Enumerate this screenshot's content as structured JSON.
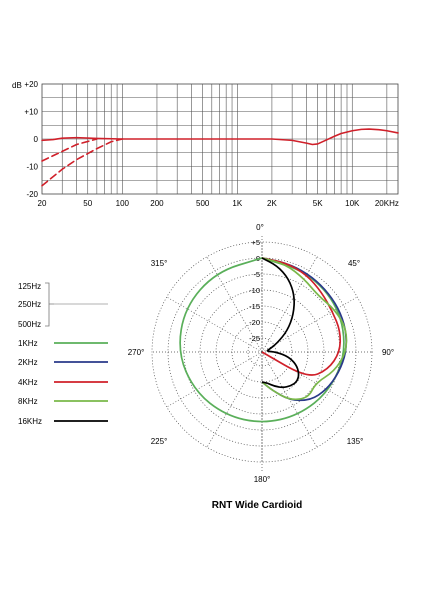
{
  "chart_data": [
    {
      "type": "line",
      "title": "",
      "xlabel": "",
      "ylabel": "dB",
      "x_scale": "log",
      "xlim": [
        20,
        25000
      ],
      "ylim": [
        -20,
        20
      ],
      "grid": true,
      "y_ticks": [
        {
          "value": 20,
          "label": "+20"
        },
        {
          "value": 10,
          "label": "+10"
        },
        {
          "value": 0,
          "label": "0"
        },
        {
          "value": -10,
          "label": "-10"
        },
        {
          "value": -20,
          "label": "-20"
        }
      ],
      "x_ticks": [
        {
          "value": 20,
          "label": "20"
        },
        {
          "value": 50,
          "label": "50"
        },
        {
          "value": 100,
          "label": "100"
        },
        {
          "value": 200,
          "label": "200"
        },
        {
          "value": 500,
          "label": "500"
        },
        {
          "value": 1000,
          "label": "1K"
        },
        {
          "value": 2000,
          "label": "2K"
        },
        {
          "value": 5000,
          "label": "5K"
        },
        {
          "value": 10000,
          "label": "10K"
        },
        {
          "value": 20000,
          "label": "20KHz"
        }
      ],
      "series": [
        {
          "style": "solid",
          "color": "#d0202a",
          "x": [
            20,
            25,
            30,
            40,
            60,
            100,
            200,
            500,
            1000,
            2000,
            3000,
            4000,
            4500,
            5000,
            6000,
            7000,
            8000,
            10000,
            12000,
            14000,
            17000,
            20000,
            25000
          ],
          "y": [
            -0.5,
            -0.2,
            0.3,
            0.5,
            0.2,
            0,
            0,
            0,
            0,
            0,
            -0.5,
            -1.5,
            -2,
            -1.8,
            -0.3,
            1,
            2,
            3,
            3.5,
            3.6,
            3.4,
            3,
            2.2
          ]
        },
        {
          "style": "dashed",
          "color": "#d0202a",
          "x": [
            20,
            30,
            40,
            60
          ],
          "y": [
            -8,
            -4.5,
            -2,
            0
          ]
        },
        {
          "style": "dashed",
          "color": "#d0202a",
          "x": [
            20,
            30,
            40,
            60,
            80,
            100
          ],
          "y": [
            -17,
            -11,
            -7.5,
            -3.5,
            -1,
            0
          ]
        }
      ]
    },
    {
      "type": "polar",
      "title": "RNT Wide Cardioid",
      "r_ticks": [
        "+5",
        "0",
        "-5",
        "-10",
        "-15",
        "-20",
        "-25"
      ],
      "angle_labels": [
        {
          "angle": 0,
          "label": "0°"
        },
        {
          "angle": 45,
          "label": "45°"
        },
        {
          "angle": 90,
          "label": "90°"
        },
        {
          "angle": 135,
          "label": "135°"
        },
        {
          "angle": 180,
          "label": "180°"
        },
        {
          "angle": 225,
          "label": "225°"
        },
        {
          "angle": 270,
          "label": "270°"
        },
        {
          "angle": 315,
          "label": "315°"
        }
      ],
      "legend": [
        {
          "name": "125Hz",
          "color": "#cccccc",
          "group": "low"
        },
        {
          "name": "250Hz",
          "color": "#cccccc",
          "group": "low"
        },
        {
          "name": "500Hz",
          "color": "#cccccc",
          "group": "low"
        },
        {
          "name": "1KHz",
          "color": "#5aaf5a"
        },
        {
          "name": "2KHz",
          "color": "#2a3a8a"
        },
        {
          "name": "4KHz",
          "color": "#d0202a"
        },
        {
          "name": "8KHz",
          "color": "#7ab84a"
        },
        {
          "name": "16KHz",
          "color": "#000000"
        }
      ],
      "series": [
        {
          "name": "1KHz",
          "color": "#5aaf5a",
          "angles": [
            0,
            30,
            60,
            90,
            120,
            150,
            180,
            210,
            240,
            270,
            300,
            330
          ],
          "db": [
            0,
            -0.5,
            -1.5,
            -3,
            -5,
            -6.5,
            -7,
            -6.5,
            -5,
            -3,
            -1.5,
            -0.5
          ]
        },
        {
          "name": "2KHz",
          "color": "#2a3a8a",
          "angles": [
            0,
            15,
            30,
            45,
            60,
            75,
            90,
            105,
            120,
            135,
            150,
            165,
            180
          ],
          "db": [
            0,
            -0.5,
            -1,
            -1.5,
            -1.8,
            -2.2,
            -3,
            -4.5,
            -6,
            -8,
            -12,
            -17,
            -20
          ]
        },
        {
          "name": "4KHz",
          "color": "#d0202a",
          "angles": [
            0,
            15,
            30,
            45,
            60,
            75,
            90,
            105,
            120,
            135
          ],
          "db": [
            0,
            -0.5,
            -1.5,
            -3,
            -4,
            -4,
            -5,
            -8,
            -13,
            -30
          ]
        },
        {
          "name": "8KHz",
          "color": "#7ab84a",
          "angles": [
            0,
            15,
            30,
            45,
            60,
            75,
            90,
            105,
            120,
            135,
            150,
            165,
            180
          ],
          "db": [
            0,
            -1,
            -3,
            -4.5,
            -3,
            -2,
            -3,
            -6,
            -10,
            -9,
            -12,
            -17,
            -20
          ]
        },
        {
          "name": "16KHz",
          "color": "#000000",
          "angles": [
            0,
            10,
            20,
            30,
            40,
            50,
            60,
            70,
            80,
            90,
            100,
            110,
            120,
            130,
            140,
            150,
            160,
            170,
            180
          ],
          "db": [
            0,
            -2,
            -5,
            -9,
            -14,
            -19,
            -24,
            -27,
            -28,
            -25,
            -21,
            -18,
            -16,
            -15,
            -15.5,
            -16.5,
            -18,
            -19.5,
            -20
          ]
        }
      ]
    }
  ]
}
